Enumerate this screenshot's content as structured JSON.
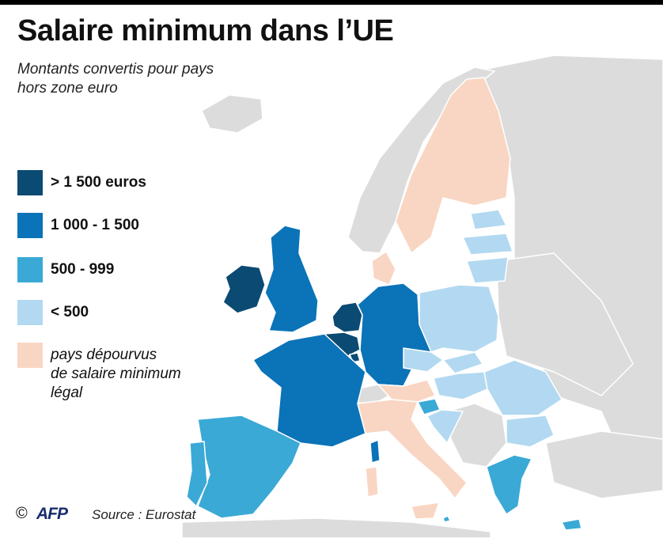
{
  "title": "Salaire minimum dans l’UE",
  "subtitle": [
    "Montants convertis pour pays",
    "hors zone euro"
  ],
  "colors": {
    "gt1500": "#0b4a72",
    "r1000_1500": "#0b73b7",
    "r500_999": "#3aa9d6",
    "lt500": "#b2d9f1",
    "none": "#f9d6c3",
    "non_eu": "#dcdcdc",
    "sea": "#ffffff",
    "border": "#ffffff"
  },
  "legend": [
    {
      "color_key": "gt1500",
      "label": [
        "> 1 500 euros"
      ],
      "italic": false
    },
    {
      "color_key": "r1000_1500",
      "label": [
        "1 000 - 1 500"
      ],
      "italic": false
    },
    {
      "color_key": "r500_999",
      "label": [
        "500 - 999"
      ],
      "italic": false
    },
    {
      "color_key": "lt500",
      "label": [
        "< 500"
      ],
      "italic": false
    },
    {
      "color_key": "none",
      "label": [
        "pays dépourvus",
        "de salaire minimum",
        "légal"
      ],
      "italic": true
    }
  ],
  "footer": {
    "copyright": "©",
    "agency": "AFP",
    "source": "Source : Eurostat"
  }
}
